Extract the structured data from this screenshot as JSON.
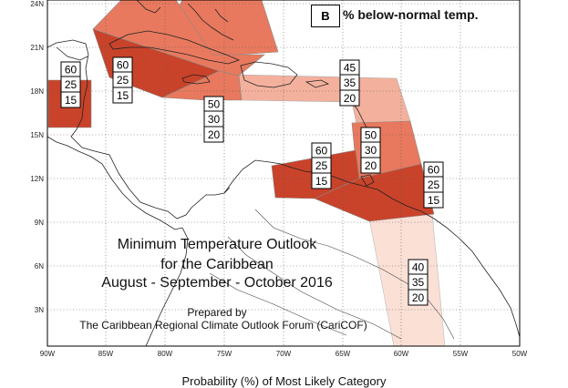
{
  "title": {
    "line1": "Minimum Temperature Outlook",
    "line2": "for the Caribbean",
    "line3": "August - September - October 2016",
    "prepared_by": "Prepared by",
    "forum": "The Caribbean Regional Climate Outlook Forum (CariCOF)"
  },
  "legend": {
    "key": "B",
    "label": "% below-normal temp."
  },
  "footer_label": "Probability (%) of Most Likely Category",
  "axes": {
    "lat_labels": [
      "24N",
      "21N",
      "18N",
      "15N",
      "12N",
      "9N",
      "6N",
      "3N"
    ],
    "lon_labels": [
      "90W",
      "85W",
      "80W",
      "75W",
      "70W",
      "65W",
      "60W",
      "55W",
      "50W"
    ]
  },
  "colors": {
    "dark": "#c9432a",
    "medium": "#e8795e",
    "light": "#f3b19d",
    "pale": "#fbe0d6"
  },
  "probability_boxes": [
    {
      "id": "belize",
      "values": [
        "60",
        "25",
        "15"
      ]
    },
    {
      "id": "cuba-jamaica",
      "values": [
        "60",
        "25",
        "15"
      ]
    },
    {
      "id": "jamaica-south",
      "values": [
        "50",
        "30",
        "20"
      ]
    },
    {
      "id": "hispaniola-pr",
      "values": [
        "45",
        "35",
        "20"
      ]
    },
    {
      "id": "lesser-antilles",
      "values": [
        "50",
        "30",
        "20"
      ]
    },
    {
      "id": "abc-islands",
      "values": [
        "60",
        "25",
        "15"
      ]
    },
    {
      "id": "trinidad",
      "values": [
        "60",
        "25",
        "15"
      ]
    },
    {
      "id": "guianas",
      "values": [
        "40",
        "35",
        "20"
      ]
    }
  ]
}
